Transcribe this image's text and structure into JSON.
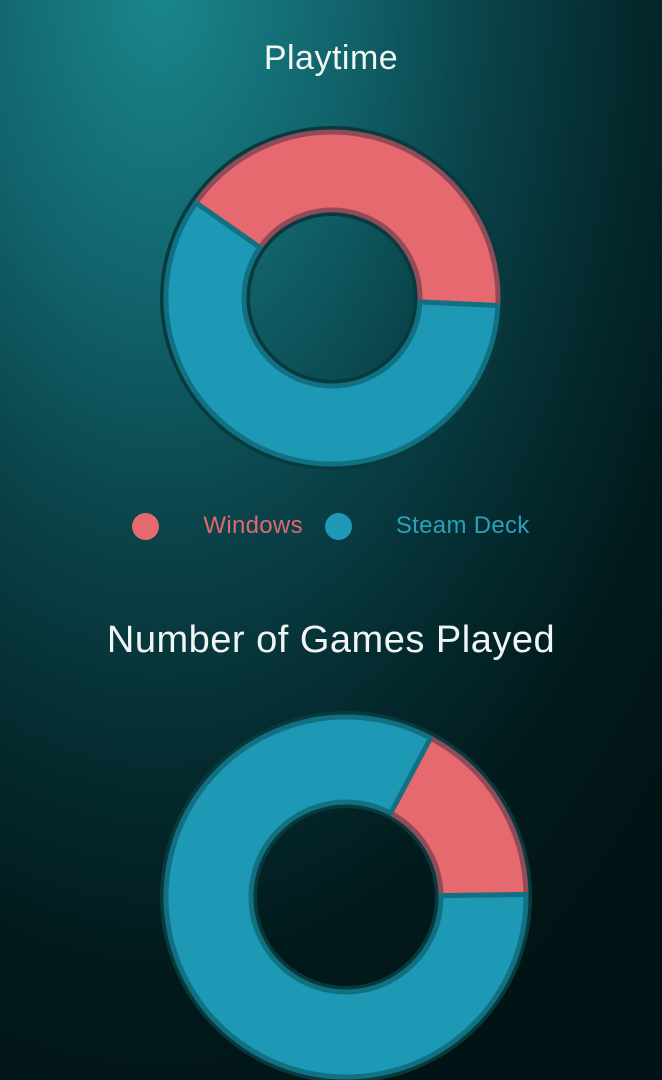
{
  "chart_data": [
    {
      "type": "pie",
      "subtype": "donut",
      "title": "Playtime",
      "categories": [
        "Windows",
        "Steam Deck"
      ],
      "values": [
        41,
        59
      ],
      "units": "percent-estimated-from-arc-angles",
      "colors": [
        "#e5696e",
        "#1d99b5"
      ],
      "border_colors": [
        "#8f4b57",
        "#117183"
      ],
      "rotation_deg": 305,
      "direction": "clockwise",
      "legend_position": "below"
    },
    {
      "type": "pie",
      "subtype": "donut",
      "title": "Number of Games Played",
      "categories": [
        "Windows",
        "Steam Deck"
      ],
      "values": [
        17,
        83
      ],
      "units": "percent-estimated-from-arc-angles",
      "colors": [
        "#e5696e",
        "#1d99b5"
      ],
      "border_colors": [
        "#8f4b57",
        "#117183"
      ],
      "rotation_deg": 28,
      "direction": "clockwise",
      "legend_position": "none"
    }
  ],
  "legend": {
    "items": [
      {
        "label": "Windows",
        "color": "#e5696e",
        "text_color": "#df686c"
      },
      {
        "label": "Steam Deck",
        "color": "#1d99b5",
        "text_color": "#2b9fbb"
      }
    ]
  },
  "theme": {
    "rim_color": "#073a3d",
    "title_color": "#f1f5f4"
  }
}
